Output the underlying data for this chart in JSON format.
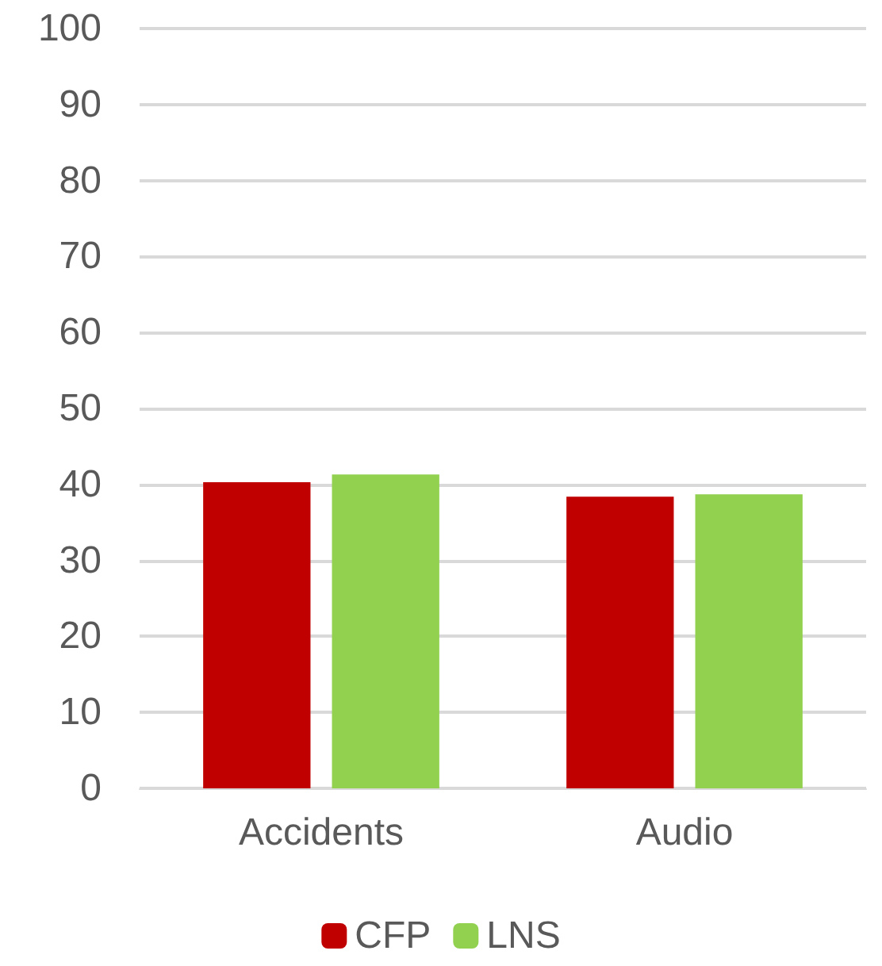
{
  "chart_data": {
    "type": "bar",
    "categories": [
      "Accidents",
      "Audio"
    ],
    "series": [
      {
        "name": "CFP",
        "color": "#c00000",
        "values": [
          40.3,
          38.4
        ]
      },
      {
        "name": "LNS",
        "color": "#92d050",
        "values": [
          41.3,
          38.7
        ]
      }
    ],
    "ylim": [
      0,
      100
    ],
    "yticks": [
      0,
      10,
      20,
      30,
      40,
      50,
      60,
      70,
      80,
      90,
      100
    ],
    "grid": "y",
    "legend": "bottom"
  }
}
